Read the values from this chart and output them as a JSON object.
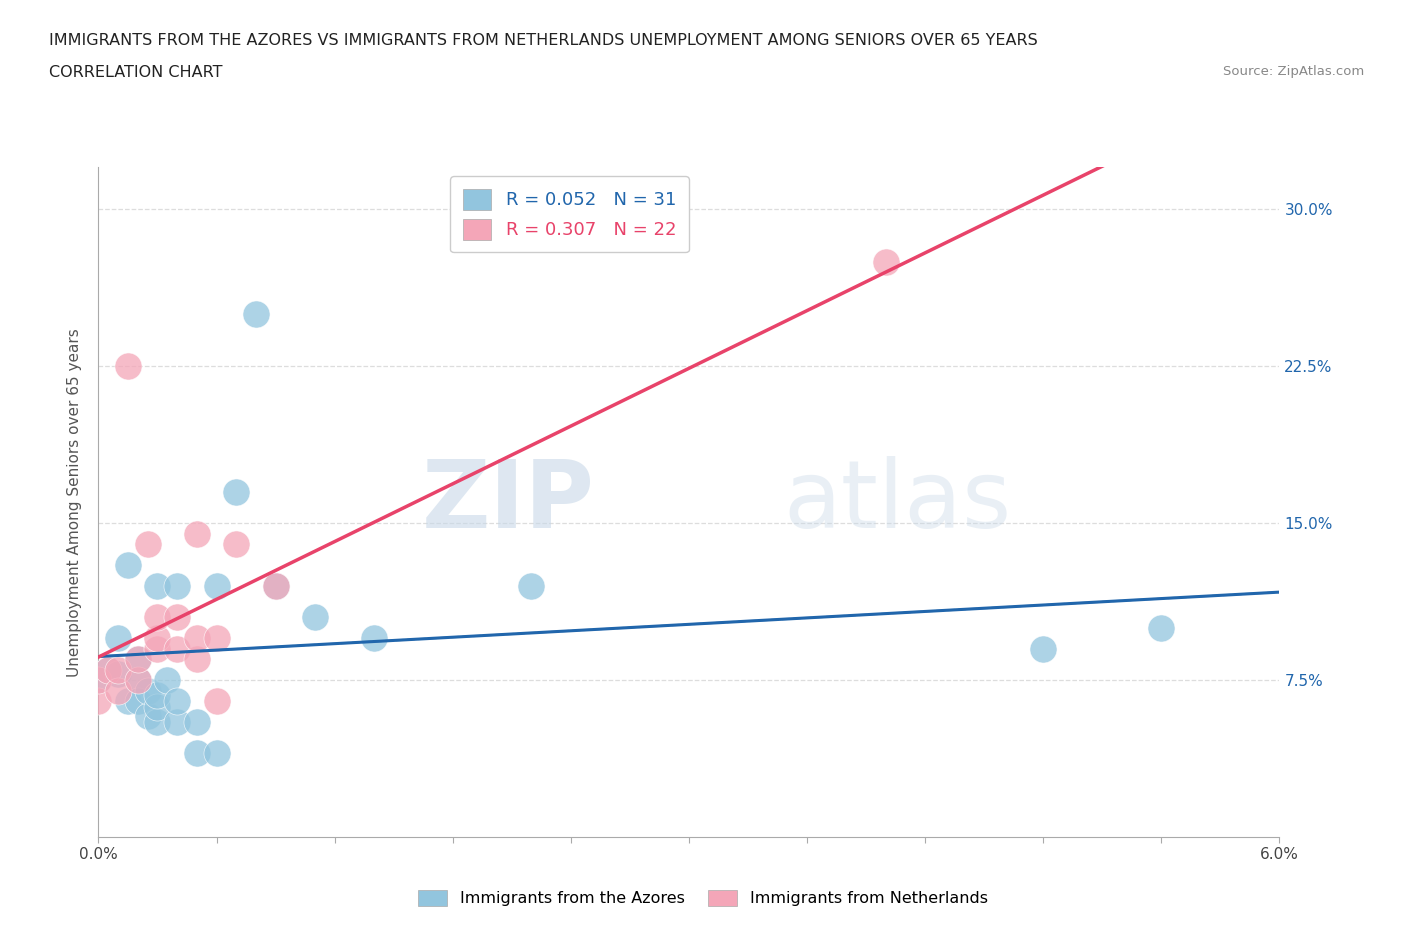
{
  "title": "IMMIGRANTS FROM THE AZORES VS IMMIGRANTS FROM NETHERLANDS UNEMPLOYMENT AMONG SENIORS OVER 65 YEARS",
  "subtitle": "CORRELATION CHART",
  "source": "Source: ZipAtlas.com",
  "ylabel": "Unemployment Among Seniors over 65 years",
  "xlim": [
    0.0,
    0.06
  ],
  "ylim": [
    0.0,
    0.32
  ],
  "x_ticks": [
    0.0,
    0.006,
    0.012,
    0.018,
    0.024,
    0.03,
    0.036,
    0.042,
    0.048,
    0.054,
    0.06
  ],
  "y_ticks": [
    0.0,
    0.075,
    0.15,
    0.225,
    0.3
  ],
  "y_tick_labels_right": [
    "",
    "7.5%",
    "15.0%",
    "22.5%",
    "30.0%"
  ],
  "R_azores": 0.052,
  "N_azores": 31,
  "R_netherlands": 0.307,
  "N_netherlands": 22,
  "color_azores": "#92c5de",
  "color_netherlands": "#f4a6b8",
  "trend_color_azores": "#2166ac",
  "trend_color_netherlands": "#e8436a",
  "azores_x": [
    0.0,
    0.0005,
    0.001,
    0.001,
    0.0015,
    0.0015,
    0.002,
    0.002,
    0.002,
    0.0025,
    0.0025,
    0.003,
    0.003,
    0.003,
    0.003,
    0.0035,
    0.004,
    0.004,
    0.004,
    0.005,
    0.005,
    0.006,
    0.006,
    0.007,
    0.008,
    0.009,
    0.011,
    0.014,
    0.022,
    0.048,
    0.054
  ],
  "azores_y": [
    0.075,
    0.08,
    0.078,
    0.095,
    0.065,
    0.13,
    0.075,
    0.065,
    0.085,
    0.058,
    0.07,
    0.055,
    0.062,
    0.068,
    0.12,
    0.075,
    0.055,
    0.065,
    0.12,
    0.04,
    0.055,
    0.04,
    0.12,
    0.165,
    0.25,
    0.12,
    0.105,
    0.095,
    0.12,
    0.09,
    0.1
  ],
  "netherlands_x": [
    0.0,
    0.0,
    0.0005,
    0.001,
    0.001,
    0.0015,
    0.002,
    0.002,
    0.0025,
    0.003,
    0.003,
    0.003,
    0.004,
    0.004,
    0.005,
    0.005,
    0.005,
    0.006,
    0.006,
    0.007,
    0.009,
    0.04
  ],
  "netherlands_y": [
    0.065,
    0.075,
    0.08,
    0.07,
    0.08,
    0.225,
    0.075,
    0.085,
    0.14,
    0.09,
    0.095,
    0.105,
    0.09,
    0.105,
    0.085,
    0.095,
    0.145,
    0.065,
    0.095,
    0.14,
    0.12,
    0.275
  ],
  "watermark_zip": "ZIP",
  "watermark_atlas": "atlas",
  "background_color": "#ffffff",
  "grid_color": "#dddddd",
  "title_fontsize": 11.5,
  "subtitle_fontsize": 11.5,
  "axis_label_fontsize": 11,
  "tick_fontsize": 11
}
